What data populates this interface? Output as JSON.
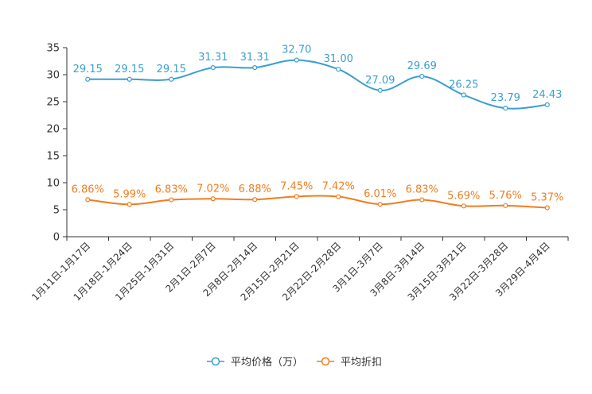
{
  "chart_data": {
    "type": "line",
    "categories": [
      "1月11日-1月17日",
      "1月18日-1月24日",
      "1月25日-1月31日",
      "2月1日-2月7日",
      "2月8日-2月14日",
      "2月15日-2月21日",
      "2月22日-2月28日",
      "3月1日-3月7日",
      "3月8日-3月14日",
      "3月15日-3月21日",
      "3月22日-3月28日",
      "3月29日-4月4日"
    ],
    "ylim": [
      0,
      35
    ],
    "yticks": [
      0,
      5,
      10,
      15,
      20,
      25,
      30,
      35
    ],
    "grid": false,
    "legend_position": "bottom-center",
    "series": [
      {
        "name": "平均价格（万）",
        "color": "#3a9fd1",
        "values": [
          29.15,
          29.15,
          29.15,
          31.31,
          31.31,
          32.7,
          31.0,
          27.09,
          29.69,
          26.25,
          23.79,
          24.43
        ],
        "labels": [
          "29.15",
          "29.15",
          "29.15",
          "31.31",
          "31.31",
          "32.70",
          "31.00",
          "27.09",
          "29.69",
          "26.25",
          "23.79",
          "24.43"
        ]
      },
      {
        "name": "平均折扣",
        "color": "#f07d1f",
        "values": [
          6.86,
          5.99,
          6.83,
          7.02,
          6.88,
          7.45,
          7.42,
          6.01,
          6.83,
          5.69,
          5.76,
          5.37
        ],
        "labels": [
          "6.86%",
          "5.99%",
          "6.83%",
          "7.02%",
          "6.88%",
          "7.45%",
          "7.42%",
          "6.01%",
          "6.83%",
          "5.69%",
          "5.76%",
          "5.37%"
        ]
      }
    ]
  }
}
